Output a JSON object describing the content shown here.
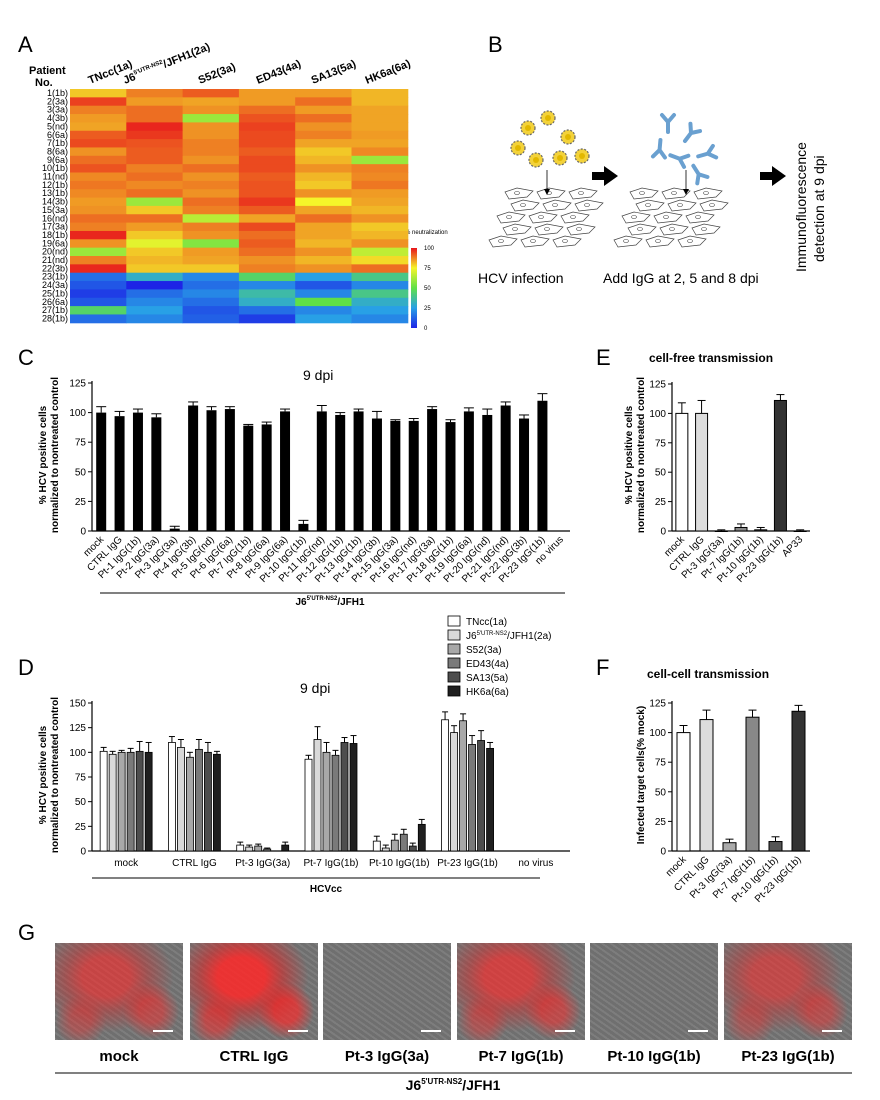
{
  "panel_letters": [
    "A",
    "B",
    "C",
    "D",
    "E",
    "F",
    "G"
  ],
  "palette": {
    "red": "#e8141c",
    "yellow": "#f5f52a",
    "green": "#5fe048",
    "blue": "#1d24e6",
    "bar_black": "#000000"
  },
  "chart_data": [
    {
      "id": "A",
      "type": "heatmap",
      "row_header": [
        "Patient",
        "No."
      ],
      "columns": [
        "TNcc(1a)",
        "J6",
        "5'UTR-NS2",
        "/JFH1(2a)",
        "S52(3a)",
        "ED43(4a)",
        "SA13(5a)",
        "HK6a(6a)"
      ],
      "column_keys": [
        "TNcc(1a)",
        "J6/JFH1(2a)",
        "S52(3a)",
        "ED43(4a)",
        "SA13(5a)",
        "HK6a(6a)"
      ],
      "rows": [
        "1(1b)",
        "2(3a)",
        "3(3a)",
        "4(3b)",
        "5(nd)",
        "6(6a)",
        "7(1b)",
        "8(6a)",
        "9(6a)",
        "10(1b)",
        "11(nd)",
        "12(1b)",
        "13(1b)",
        "14(3b)",
        "15(3a)",
        "16(nd)",
        "17(3a)",
        "18(1b)",
        "19(6a)",
        "20(nd)",
        "21(nd)",
        "22(3b)",
        "23(1b)",
        "24(3a)",
        "25(1b)",
        "26(6a)",
        "27(1b)",
        "28(1b)"
      ],
      "values": [
        [
          80,
          88,
          92,
          85,
          85,
          82
        ],
        [
          95,
          85,
          84,
          85,
          90,
          82
        ],
        [
          88,
          90,
          86,
          90,
          85,
          84
        ],
        [
          85,
          90,
          60,
          93,
          90,
          84
        ],
        [
          84,
          98,
          86,
          95,
          86,
          84
        ],
        [
          92,
          96,
          86,
          94,
          88,
          85
        ],
        [
          94,
          93,
          88,
          94,
          84,
          84
        ],
        [
          86,
          92,
          88,
          92,
          80,
          87
        ],
        [
          90,
          92,
          86,
          94,
          82,
          60
        ],
        [
          93,
          88,
          90,
          94,
          86,
          88
        ],
        [
          87,
          90,
          86,
          92,
          82,
          87
        ],
        [
          89,
          87,
          88,
          93,
          80,
          89
        ],
        [
          87,
          90,
          86,
          93,
          86,
          85
        ],
        [
          85,
          60,
          90,
          96,
          75,
          84
        ],
        [
          86,
          80,
          88,
          92,
          84,
          82
        ],
        [
          90,
          90,
          65,
          84,
          90,
          86
        ],
        [
          88,
          85,
          88,
          94,
          84,
          80
        ],
        [
          98,
          80,
          86,
          90,
          84,
          82
        ],
        [
          86,
          72,
          56,
          92,
          82,
          86
        ],
        [
          60,
          80,
          85,
          90,
          86,
          66
        ],
        [
          88,
          82,
          84,
          86,
          82,
          78
        ],
        [
          98,
          80,
          80,
          88,
          86,
          90
        ],
        [
          15,
          30,
          20,
          45,
          25,
          40
        ],
        [
          10,
          0,
          15,
          20,
          10,
          20
        ],
        [
          5,
          15,
          20,
          35,
          20,
          40
        ],
        [
          10,
          20,
          15,
          30,
          50,
          30
        ],
        [
          45,
          25,
          10,
          15,
          20,
          25
        ],
        [
          15,
          20,
          12,
          5,
          25,
          20
        ]
      ],
      "scale": {
        "title": "% neutralization",
        "min": 0,
        "max": 100,
        "ticks": [
          0,
          25,
          50,
          75,
          100
        ]
      }
    },
    {
      "id": "C",
      "type": "bar",
      "title": "9 dpi",
      "ylabel": [
        "% HCV positive cells",
        "normalized to nontreated control"
      ],
      "ylim": [
        0,
        125
      ],
      "yticks": [
        0,
        25,
        50,
        75,
        100,
        125
      ],
      "categories": [
        "mock",
        "CTRL IgG",
        "Pt-1 IgG(1b)",
        "Pt-2 IgG(3a)",
        "Pt-3 IgG(3a)",
        "Pt-4 IgG(3b)",
        "Pt-5 IgG(nd)",
        "Pt-6 IgG(6a)",
        "Pt-7 IgG(1b)",
        "Pt-8 IgG(6a)",
        "Pt-9 IgG(6a)",
        "Pt-10 IgG(1b)",
        "Pt-11 IgG(nd)",
        "Pt-12 IgG(1b)",
        "Pt-13 IgG(1b)",
        "Pt-14 IgG(3b)",
        "Pt-15 IgG(3a)",
        "Pt-16 IgG(nd)",
        "Pt-17 IgG(3a)",
        "Pt-18 IgG(1b)",
        "Pt-19 IgG(6a)",
        "Pt-20 IgG(nd)",
        "Pt-21 IgG(nd)",
        "Pt-22 IgG(3b)",
        "Pt-23 IgG(1b)",
        "no virus"
      ],
      "values": [
        100,
        97,
        100,
        96,
        2,
        106,
        102,
        103,
        89,
        90,
        101,
        6,
        101,
        98,
        101,
        95,
        93,
        93,
        103,
        92,
        101,
        98,
        106,
        95,
        110,
        0
      ],
      "errors": [
        5,
        4,
        3,
        3,
        2,
        3,
        3,
        2,
        1,
        2,
        2,
        3,
        5,
        2,
        2,
        6,
        1,
        2,
        2,
        2,
        3,
        5,
        3,
        3,
        6,
        0
      ],
      "group_label": [
        "J6",
        "5'UTR-NS2",
        "/JFH1"
      ]
    },
    {
      "id": "D",
      "type": "bar",
      "title": "9 dpi",
      "ylabel": [
        "% HCV positive cells",
        "normalized to nontreated control"
      ],
      "ylim": [
        0,
        150
      ],
      "yticks": [
        0,
        25,
        50,
        75,
        100,
        125,
        150
      ],
      "categories": [
        "mock",
        "CTRL IgG",
        "Pt-3 IgG(3a)",
        "Pt-7 IgG(1b)",
        "Pt-10 IgG(1b)",
        "Pt-23 IgG(1b)",
        "no virus"
      ],
      "series": [
        {
          "name": "TNcc(1a)",
          "fill": "#ffffff",
          "values": [
            101,
            110,
            6,
            93,
            10,
            133,
            0
          ],
          "errors": [
            4,
            6,
            3,
            4,
            5,
            8,
            0
          ]
        },
        {
          "name": "J6/JFH1(2a)",
          "name_parts": [
            "J6",
            "5'UTR-NS2",
            "/JFH1(2a)"
          ],
          "fill": "#d9d9d9",
          "values": [
            98,
            105,
            4,
            113,
            3,
            120,
            0
          ],
          "errors": [
            3,
            8,
            2,
            13,
            3,
            7,
            0
          ]
        },
        {
          "name": "S52(3a)",
          "fill": "#a8a8a8",
          "values": [
            100,
            95,
            5,
            100,
            11,
            132,
            0
          ],
          "errors": [
            2,
            5,
            2,
            10,
            6,
            7,
            0
          ]
        },
        {
          "name": "ED43(4a)",
          "fill": "#7a7a7a",
          "values": [
            100,
            103,
            2,
            97,
            17,
            108,
            0
          ],
          "errors": [
            4,
            10,
            1,
            5,
            5,
            9,
            0
          ]
        },
        {
          "name": "SA13(5a)",
          "fill": "#4d4d4d",
          "values": [
            101,
            100,
            0,
            110,
            5,
            112,
            0
          ],
          "errors": [
            10,
            10,
            0,
            5,
            3,
            10,
            0
          ]
        },
        {
          "name": "HK6a(6a)",
          "fill": "#1f1f1f",
          "values": [
            100,
            98,
            6,
            109,
            27,
            104,
            0
          ],
          "errors": [
            10,
            3,
            3,
            8,
            5,
            6,
            0
          ]
        }
      ],
      "group_label": "HCVcc"
    },
    {
      "id": "E",
      "type": "bar",
      "title": "cell-free transmission",
      "ylabel": [
        "% HCV positive cells",
        "normalized to nontreated control"
      ],
      "ylim": [
        0,
        125
      ],
      "yticks": [
        0,
        25,
        50,
        75,
        100,
        125
      ],
      "categories": [
        "mock",
        "CTRL IgG",
        "Pt-3 IgG(3a)",
        "Pt-7 IgG(1b)",
        "Pt-10 IgG(1b)",
        "Pt-23 IgG(1b)",
        "AP33"
      ],
      "values": [
        100,
        100,
        0,
        3,
        1,
        111,
        0
      ],
      "errors": [
        9,
        11,
        1,
        3,
        2,
        5,
        1
      ],
      "fills": [
        "#ffffff",
        "#dddddd",
        "#aaaaaa",
        "#888888",
        "#555555",
        "#333333",
        "#000000"
      ]
    },
    {
      "id": "F",
      "type": "bar",
      "title": "cell-cell transmission",
      "ylabel": [
        "Infected target cells(% mock)"
      ],
      "ylim": [
        0,
        125
      ],
      "yticks": [
        0,
        25,
        50,
        75,
        100,
        125
      ],
      "categories": [
        "mock",
        "CTRL IgG",
        "Pt-3 IgG(3a)",
        "Pt-7 IgG(1b)",
        "Pt-10 IgG(1b)",
        "Pt-23 IgG(1b)"
      ],
      "values": [
        100,
        111,
        7,
        113,
        8,
        118
      ],
      "errors": [
        6,
        8,
        3,
        6,
        4,
        5
      ],
      "fills": [
        "#ffffff",
        "#dddddd",
        "#aaaaaa",
        "#888888",
        "#555555",
        "#333333"
      ]
    }
  ],
  "diagram_B": {
    "step1": "HCV infection",
    "step2": "Add IgG at 2, 5 and 8 dpi",
    "step3_lines": [
      "Immunofluorescence",
      "detection at 9 dpi"
    ]
  },
  "microscopy_G": {
    "labels": [
      "mock",
      "CTRL IgG",
      "Pt-3 IgG(3a)",
      "Pt-7 IgG(1b)",
      "Pt-10 IgG(1b)",
      "Pt-23 IgG(1b)"
    ],
    "intensity": [
      0.6,
      0.85,
      0,
      0.65,
      0,
      0.55
    ],
    "group_label": [
      "J6",
      "5'UTR-NS2",
      "/JFH1"
    ]
  }
}
